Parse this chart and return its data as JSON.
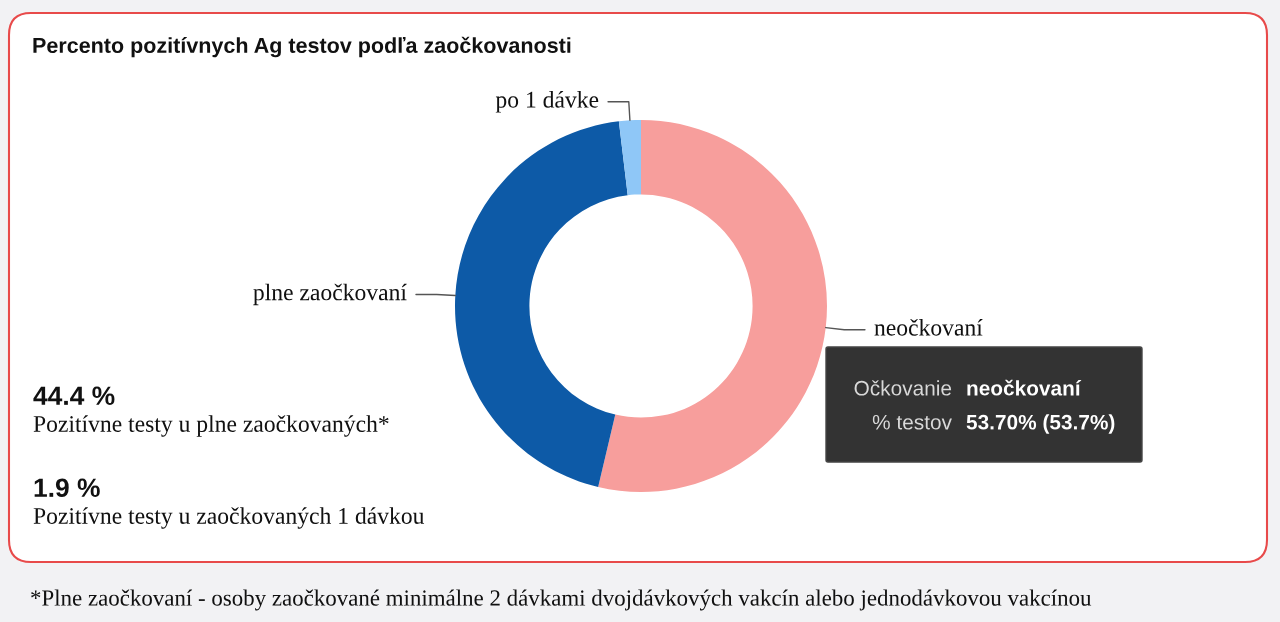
{
  "chart_data": {
    "type": "donut",
    "title": "Percento pozitívnych Ag testov podľa zaočkovanosti",
    "categories": [
      "neočkovaní",
      "plne zaočkovaní",
      "po 1 dávke"
    ],
    "values": [
      53.7,
      44.4,
      1.9
    ],
    "colors": [
      "#f79e9c",
      "#0d5aa7",
      "#8fc7f7"
    ],
    "annotations": [
      "44.4 %",
      "Pozitívne testy u plne zaočkovaných*",
      "1.9 %",
      "Pozitívne testy u zaočkovaných 1 dávkou",
      "Očkovanie",
      "neočkovaní",
      "% testov",
      "53.70% (53.7%)",
      "*Plne zaočkovaní - osoby zaočkované minimálne 2 dávkami dvojdávkových vakcín alebo jednodávkovou vakcínou"
    ]
  }
}
